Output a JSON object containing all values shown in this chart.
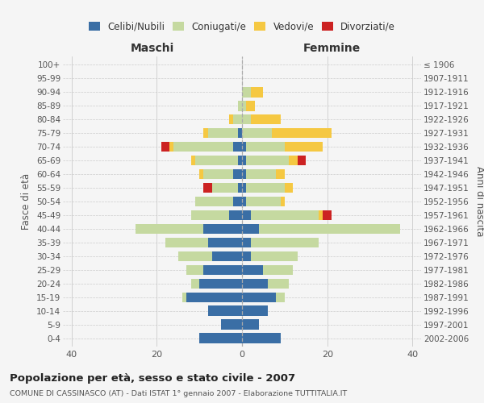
{
  "age_groups": [
    "0-4",
    "5-9",
    "10-14",
    "15-19",
    "20-24",
    "25-29",
    "30-34",
    "35-39",
    "40-44",
    "45-49",
    "50-54",
    "55-59",
    "60-64",
    "65-69",
    "70-74",
    "75-79",
    "80-84",
    "85-89",
    "90-94",
    "95-99",
    "100+"
  ],
  "birth_years": [
    "2002-2006",
    "1997-2001",
    "1992-1996",
    "1987-1991",
    "1982-1986",
    "1977-1981",
    "1972-1976",
    "1967-1971",
    "1962-1966",
    "1957-1961",
    "1952-1956",
    "1947-1951",
    "1942-1946",
    "1937-1941",
    "1932-1936",
    "1927-1931",
    "1922-1926",
    "1917-1921",
    "1912-1916",
    "1907-1911",
    "≤ 1906"
  ],
  "maschi": {
    "celibi": [
      10,
      5,
      8,
      13,
      10,
      9,
      7,
      8,
      9,
      3,
      2,
      1,
      2,
      1,
      2,
      1,
      0,
      0,
      0,
      0,
      0
    ],
    "coniugati": [
      0,
      0,
      0,
      1,
      2,
      4,
      8,
      10,
      16,
      9,
      9,
      6,
      7,
      10,
      14,
      7,
      2,
      1,
      0,
      0,
      0
    ],
    "vedovi": [
      0,
      0,
      0,
      0,
      0,
      0,
      0,
      0,
      0,
      0,
      0,
      0,
      1,
      1,
      1,
      1,
      1,
      0,
      0,
      0,
      0
    ],
    "divorziati": [
      0,
      0,
      0,
      0,
      0,
      0,
      0,
      0,
      0,
      0,
      0,
      2,
      0,
      0,
      2,
      0,
      0,
      0,
      0,
      0,
      0
    ]
  },
  "femmine": {
    "nubili": [
      9,
      4,
      6,
      8,
      6,
      5,
      2,
      2,
      4,
      2,
      1,
      1,
      1,
      1,
      1,
      0,
      0,
      0,
      0,
      0,
      0
    ],
    "coniugate": [
      0,
      0,
      0,
      2,
      5,
      7,
      11,
      16,
      33,
      16,
      8,
      9,
      7,
      10,
      9,
      7,
      2,
      1,
      2,
      0,
      0
    ],
    "vedove": [
      0,
      0,
      0,
      0,
      0,
      0,
      0,
      0,
      0,
      1,
      1,
      2,
      2,
      2,
      9,
      14,
      7,
      2,
      3,
      0,
      0
    ],
    "divorziate": [
      0,
      0,
      0,
      0,
      0,
      0,
      0,
      0,
      0,
      2,
      0,
      0,
      0,
      2,
      0,
      0,
      0,
      0,
      0,
      0,
      0
    ]
  },
  "colors": {
    "celibi_nubili": "#3a6ea5",
    "coniugati": "#c5d9a0",
    "vedovi": "#f5c842",
    "divorziati": "#cc2222"
  },
  "title": "Popolazione per età, sesso e stato civile - 2007",
  "subtitle": "COMUNE DI CASSINASCO (AT) - Dati ISTAT 1° gennaio 2007 - Elaborazione TUTTITALIA.IT",
  "ylabel_left": "Fasce di età",
  "ylabel_right": "Anni di nascita",
  "xlabel_left": "Maschi",
  "xlabel_right": "Femmine",
  "xlim": 42,
  "legend_labels": [
    "Celibi/Nubili",
    "Coniugati/e",
    "Vedovi/e",
    "Divorziati/e"
  ],
  "background_color": "#f5f5f5",
  "grid_color": "#cccccc"
}
